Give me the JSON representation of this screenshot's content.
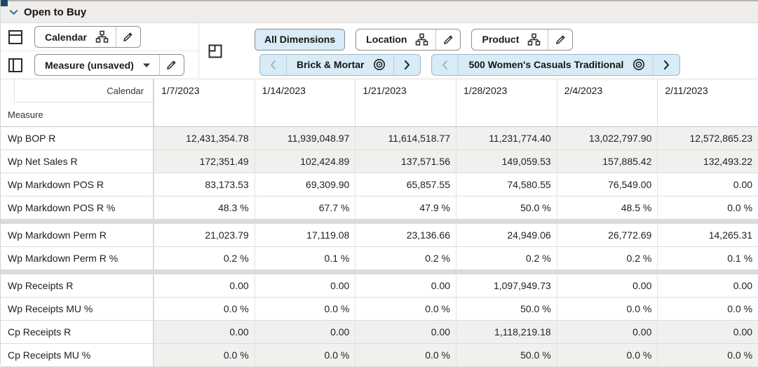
{
  "view": {
    "title": "Open to Buy"
  },
  "toolbar": {
    "calendar_button": {
      "label": "Calendar"
    },
    "measure_button": {
      "label": "Measure (unsaved)"
    },
    "all_dimensions_button": {
      "label": "All Dimensions"
    },
    "location_button": {
      "label": "Location"
    },
    "product_button": {
      "label": "Product"
    },
    "location_chip": {
      "label": "Brick & Mortar"
    },
    "product_chip": {
      "label": "500 Women's Casuals Traditional"
    }
  },
  "table": {
    "corner": {
      "column_dimension": "Calendar",
      "row_dimension": "Measure"
    },
    "columns": [
      "1/7/2023",
      "1/14/2023",
      "1/21/2023",
      "1/28/2023",
      "2/4/2023",
      "2/11/2023"
    ],
    "rows": [
      {
        "label": "Wp BOP R",
        "shaded": true,
        "sep_before": false,
        "values": [
          "12,431,354.78",
          "11,939,048.97",
          "11,614,518.77",
          "11,231,774.40",
          "13,022,797.90",
          "12,572,865.23"
        ]
      },
      {
        "label": "Wp Net Sales R",
        "shaded": true,
        "sep_before": false,
        "values": [
          "172,351.49",
          "102,424.89",
          "137,571.56",
          "149,059.53",
          "157,885.42",
          "132,493.22"
        ]
      },
      {
        "label": "Wp Markdown POS R",
        "shaded": false,
        "sep_before": false,
        "values": [
          "83,173.53",
          "69,309.90",
          "65,857.55",
          "74,580.55",
          "76,549.00",
          "0.00"
        ]
      },
      {
        "label": "Wp Markdown POS R %",
        "shaded": false,
        "sep_before": false,
        "values": [
          "48.3 %",
          "67.7 %",
          "47.9 %",
          "50.0 %",
          "48.5 %",
          "0.0 %"
        ]
      },
      {
        "label": "Wp Markdown Perm R",
        "shaded": false,
        "sep_before": true,
        "values": [
          "21,023.79",
          "17,119.08",
          "23,136.66",
          "24,949.06",
          "26,772.69",
          "14,265.31"
        ]
      },
      {
        "label": "Wp Markdown Perm R %",
        "shaded": false,
        "sep_before": false,
        "values": [
          "0.2 %",
          "0.1 %",
          "0.2 %",
          "0.2 %",
          "0.2 %",
          "0.1 %"
        ]
      },
      {
        "label": "Wp Receipts R",
        "shaded": false,
        "sep_before": true,
        "values": [
          "0.00",
          "0.00",
          "0.00",
          "1,097,949.73",
          "0.00",
          "0.00"
        ]
      },
      {
        "label": "Wp Receipts MU %",
        "shaded": false,
        "sep_before": false,
        "values": [
          "0.0 %",
          "0.0 %",
          "0.0 %",
          "50.0 %",
          "0.0 %",
          "0.0 %"
        ]
      },
      {
        "label": "Cp Receipts R",
        "shaded": true,
        "sep_before": false,
        "values": [
          "0.00",
          "0.00",
          "0.00",
          "1,118,219.18",
          "0.00",
          "0.00"
        ]
      },
      {
        "label": "Cp Receipts MU %",
        "shaded": true,
        "sep_before": false,
        "values": [
          "0.0 %",
          "0.0 %",
          "0.0 %",
          "50.0 %",
          "0.0 %",
          "0.0 %"
        ]
      }
    ]
  },
  "icons": {
    "header_collapse": "chevron-down-icon",
    "columns_axis": "columns-axis-icon",
    "rows_axis": "rows-axis-icon",
    "pivot": "pivot-icon",
    "hierarchy": "hierarchy-icon",
    "edit": "pencil-icon",
    "dropdown": "caret-down-icon",
    "position_target": "bullseye-icon",
    "prev": "chevron-left-icon",
    "next": "chevron-right-icon"
  },
  "colors": {
    "selection_blue_bg": "#d8ebf6",
    "chip_border": "#9db9c8",
    "shaded_cell_bg": "#f1f0ee",
    "header_bar_bg": "#eeedeb",
    "group_separator": "#d8dcdf",
    "accent_navy": "#17496e",
    "title_chevron_blue": "#2e6e9e"
  }
}
